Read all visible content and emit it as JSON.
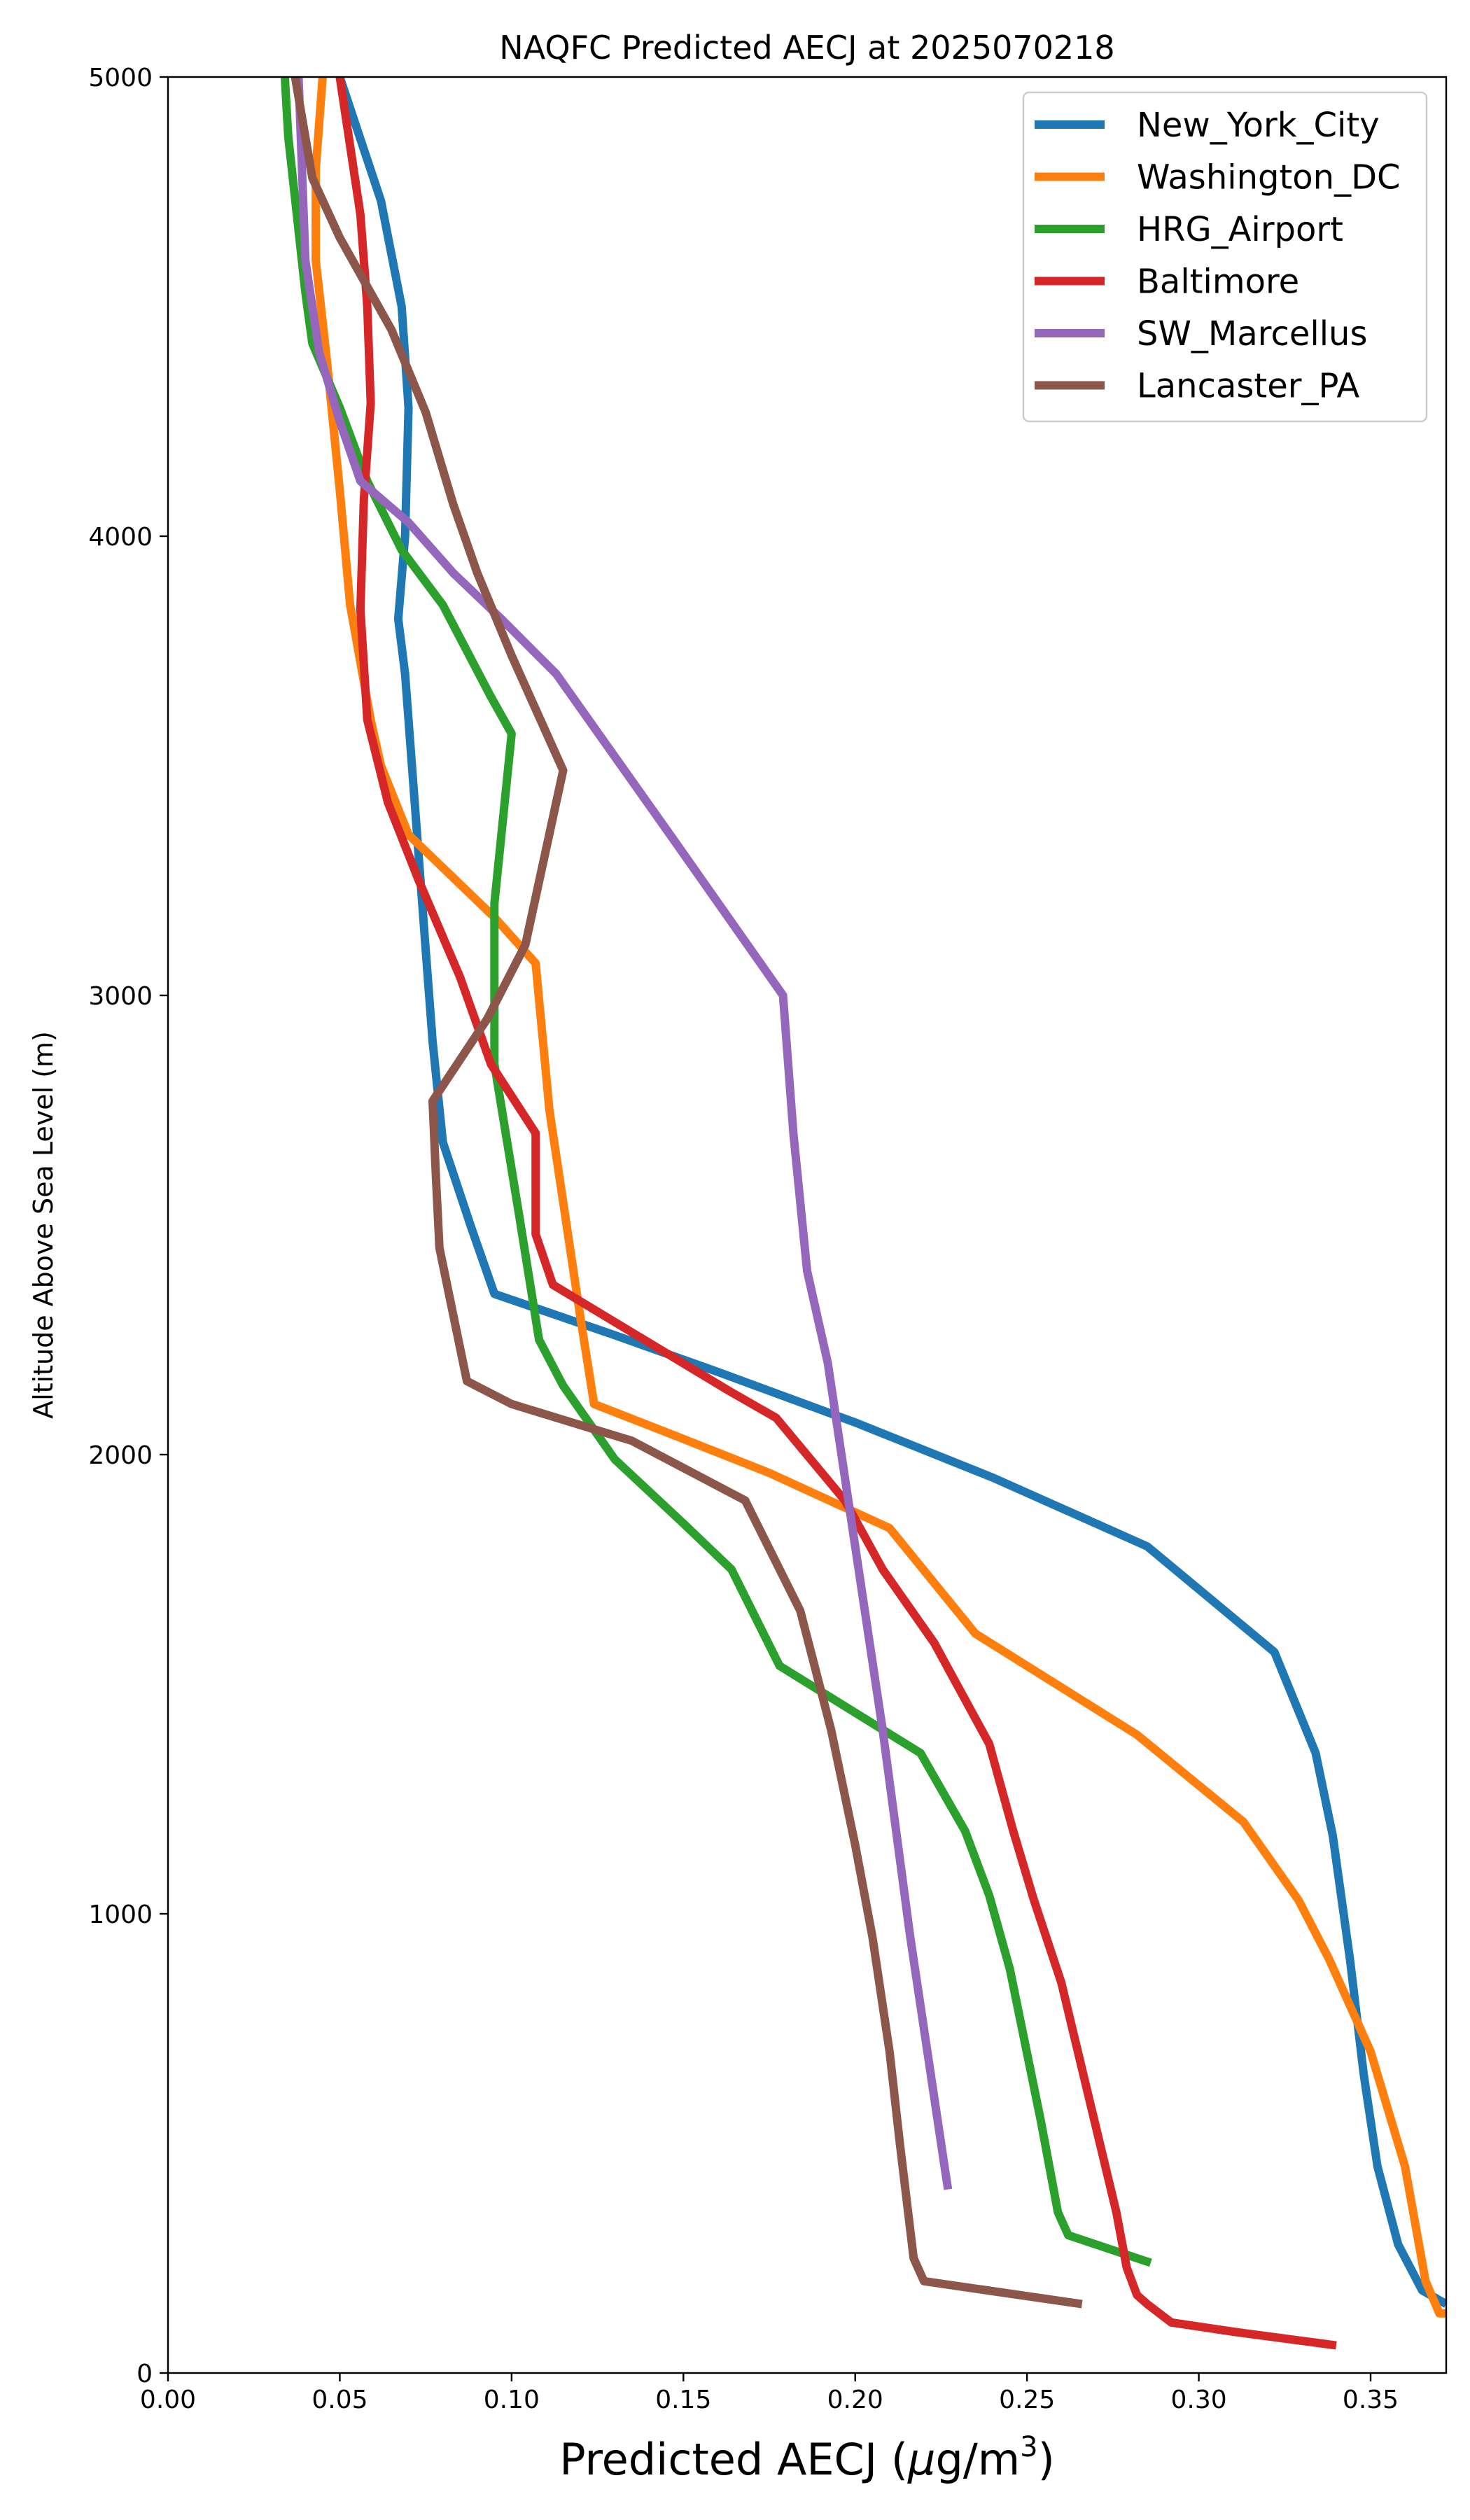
{
  "chart_data": {
    "type": "line",
    "title": "NAQFC Predicted AECJ at 2025070218",
    "xlabel": "Predicted AECJ (μg/m³)",
    "ylabel": "Altitude Above Sea Level (m)",
    "xlim": [
      0.0,
      0.372
    ],
    "ylim": [
      0,
      5000
    ],
    "xticks": [
      "0.00",
      "0.05",
      "0.10",
      "0.15",
      "0.20",
      "0.25",
      "0.30",
      "0.35"
    ],
    "yticks": [
      "0",
      "1000",
      "2000",
      "3000",
      "4000",
      "5000"
    ],
    "grid": false,
    "legend_position": "top-right",
    "series": [
      {
        "name": "New_York_City",
        "color": "#1f77b4",
        "points": [
          [
            0.372,
            150
          ],
          [
            0.365,
            180
          ],
          [
            0.358,
            280
          ],
          [
            0.352,
            450
          ],
          [
            0.348,
            650
          ],
          [
            0.344,
            900
          ],
          [
            0.339,
            1170
          ],
          [
            0.334,
            1350
          ],
          [
            0.322,
            1570
          ],
          [
            0.285,
            1800
          ],
          [
            0.24,
            1950
          ],
          [
            0.2,
            2070
          ],
          [
            0.16,
            2180
          ],
          [
            0.13,
            2260
          ],
          [
            0.095,
            2350
          ],
          [
            0.088,
            2500
          ],
          [
            0.08,
            2680
          ],
          [
            0.077,
            2900
          ],
          [
            0.075,
            3100
          ],
          [
            0.072,
            3400
          ],
          [
            0.069,
            3700
          ],
          [
            0.067,
            3820
          ],
          [
            0.069,
            4000
          ],
          [
            0.07,
            4280
          ],
          [
            0.068,
            4500
          ],
          [
            0.062,
            4730
          ],
          [
            0.05,
            5000
          ]
        ]
      },
      {
        "name": "Washington_DC",
        "color": "#ff7f0e",
        "points": [
          [
            0.372,
            130
          ],
          [
            0.37,
            130
          ],
          [
            0.366,
            200
          ],
          [
            0.36,
            450
          ],
          [
            0.35,
            700
          ],
          [
            0.338,
            900
          ],
          [
            0.329,
            1030
          ],
          [
            0.313,
            1200
          ],
          [
            0.282,
            1390
          ],
          [
            0.235,
            1610
          ],
          [
            0.21,
            1840
          ],
          [
            0.175,
            1960
          ],
          [
            0.148,
            2040
          ],
          [
            0.124,
            2110
          ],
          [
            0.12,
            2300
          ],
          [
            0.116,
            2500
          ],
          [
            0.111,
            2750
          ],
          [
            0.107,
            3070
          ],
          [
            0.095,
            3170
          ],
          [
            0.07,
            3350
          ],
          [
            0.062,
            3500
          ],
          [
            0.059,
            3600
          ],
          [
            0.053,
            3850
          ],
          [
            0.05,
            4100
          ],
          [
            0.046,
            4400
          ],
          [
            0.043,
            4600
          ],
          [
            0.043,
            4800
          ],
          [
            0.045,
            5000
          ]
        ]
      },
      {
        "name": "HRG_Airport",
        "color": "#2ca02c",
        "points": [
          [
            0.286,
            240
          ],
          [
            0.27,
            280
          ],
          [
            0.262,
            300
          ],
          [
            0.259,
            350
          ],
          [
            0.254,
            550
          ],
          [
            0.245,
            880
          ],
          [
            0.239,
            1040
          ],
          [
            0.232,
            1180
          ],
          [
            0.219,
            1350
          ],
          [
            0.178,
            1540
          ],
          [
            0.164,
            1750
          ],
          [
            0.15,
            1850
          ],
          [
            0.13,
            1990
          ],
          [
            0.115,
            2150
          ],
          [
            0.108,
            2250
          ],
          [
            0.102,
            2530
          ],
          [
            0.095,
            2850
          ],
          [
            0.095,
            3000
          ],
          [
            0.095,
            3200
          ],
          [
            0.1,
            3570
          ],
          [
            0.094,
            3650
          ],
          [
            0.08,
            3850
          ],
          [
            0.068,
            3970
          ],
          [
            0.058,
            4120
          ],
          [
            0.05,
            4280
          ],
          [
            0.042,
            4420
          ],
          [
            0.04,
            4530
          ],
          [
            0.035,
            4870
          ],
          [
            0.034,
            5000
          ]
        ]
      },
      {
        "name": "Baltimore",
        "color": "#d62728",
        "points": [
          [
            0.34,
            60
          ],
          [
            0.31,
            90
          ],
          [
            0.292,
            110
          ],
          [
            0.285,
            150
          ],
          [
            0.282,
            170
          ],
          [
            0.279,
            230
          ],
          [
            0.276,
            350
          ],
          [
            0.268,
            600
          ],
          [
            0.26,
            850
          ],
          [
            0.252,
            1030
          ],
          [
            0.246,
            1180
          ],
          [
            0.239,
            1370
          ],
          [
            0.223,
            1590
          ],
          [
            0.208,
            1750
          ],
          [
            0.197,
            1900
          ],
          [
            0.177,
            2080
          ],
          [
            0.163,
            2140
          ],
          [
            0.112,
            2370
          ],
          [
            0.107,
            2480
          ],
          [
            0.107,
            2700
          ],
          [
            0.094,
            2850
          ],
          [
            0.085,
            3040
          ],
          [
            0.073,
            3250
          ],
          [
            0.064,
            3420
          ],
          [
            0.058,
            3600
          ],
          [
            0.056,
            3840
          ],
          [
            0.057,
            4080
          ],
          [
            0.059,
            4290
          ],
          [
            0.058,
            4500
          ],
          [
            0.056,
            4700
          ],
          [
            0.05,
            5000
          ]
        ]
      },
      {
        "name": "SW_Marcellus",
        "color": "#9467bd",
        "points": [
          [
            0.227,
            400
          ],
          [
            0.226,
            450
          ],
          [
            0.216,
            950
          ],
          [
            0.208,
            1400
          ],
          [
            0.2,
            1800
          ],
          [
            0.196,
            2000
          ],
          [
            0.192,
            2200
          ],
          [
            0.186,
            2400
          ],
          [
            0.182,
            2700
          ],
          [
            0.179,
            3000
          ],
          [
            0.148,
            3330
          ],
          [
            0.113,
            3700
          ],
          [
            0.097,
            3820
          ],
          [
            0.083,
            3920
          ],
          [
            0.07,
            4030
          ],
          [
            0.056,
            4120
          ],
          [
            0.05,
            4250
          ],
          [
            0.044,
            4400
          ],
          [
            0.04,
            4600
          ],
          [
            0.039,
            4800
          ],
          [
            0.038,
            5000
          ]
        ]
      },
      {
        "name": "Lancaster_PA",
        "color": "#8c564b",
        "points": [
          [
            0.266,
            150
          ],
          [
            0.22,
            200
          ],
          [
            0.217,
            250
          ],
          [
            0.213,
            500
          ],
          [
            0.21,
            700
          ],
          [
            0.205,
            950
          ],
          [
            0.2,
            1150
          ],
          [
            0.193,
            1400
          ],
          [
            0.184,
            1660
          ],
          [
            0.168,
            1900
          ],
          [
            0.135,
            2030
          ],
          [
            0.1,
            2110
          ],
          [
            0.087,
            2160
          ],
          [
            0.079,
            2450
          ],
          [
            0.078,
            2600
          ],
          [
            0.077,
            2770
          ],
          [
            0.093,
            2950
          ],
          [
            0.104,
            3110
          ],
          [
            0.115,
            3490
          ],
          [
            0.1,
            3740
          ],
          [
            0.09,
            3920
          ],
          [
            0.083,
            4070
          ],
          [
            0.075,
            4270
          ],
          [
            0.065,
            4450
          ],
          [
            0.05,
            4650
          ],
          [
            0.042,
            4780
          ],
          [
            0.037,
            5000
          ]
        ]
      }
    ]
  }
}
